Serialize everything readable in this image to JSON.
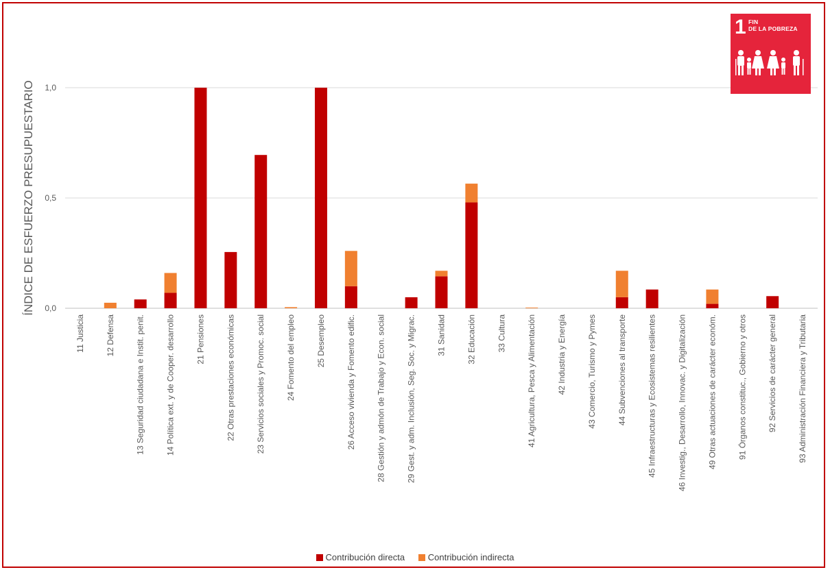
{
  "chart_data": {
    "type": "bar",
    "stacked": true,
    "ylabel": "ÍNDICE DE ESFUERZO PRESUPUESTARIO",
    "xlabel": "",
    "ylim": [
      0,
      1.15
    ],
    "yticks": [
      {
        "value": 0,
        "label": "0,0"
      },
      {
        "value": 0.5,
        "label": "0,5"
      },
      {
        "value": 1,
        "label": "1,0"
      }
    ],
    "grid": true,
    "legend_position": "bottom",
    "categories": [
      "11 Justicia",
      "12 Defensa",
      "13 Seguridad ciudadana e Instit. penit.",
      "14 Política ext. y de Cooper. desarrollo",
      "21 Pensiones",
      "22 Otras prestaciones económicas",
      "23 Servicios sociales y Promoc. social",
      "24 Fomento del empleo",
      "25 Desempleo",
      "26 Acceso vivienda y Fomento edific.",
      "28 Gestión y admón de Trabajo y Econ. social",
      "29 Gest. y adm. Inclusión, Seg. Soc. y Migrac.",
      "31 Sanidad",
      "32 Educación",
      "33 Cultura",
      "41 Agricultura, Pesca y Alimentación",
      "42 Industria y Energía",
      "43 Comercio, Turismo y Pymes",
      "44 Subvenciones al transporte",
      "45 Infraestructuras y Ecosistemas resilientes",
      "46 Investig., Desarrollo, Innovac. y Digitalización",
      "49 Otras actuaciones de carácter económ.",
      "91 Órganos constituc., Gobierno y otros",
      "92 Servicios de carácter general",
      "93 Administración Financiera y Tributaria"
    ],
    "series": [
      {
        "name": "Contribución directa",
        "color": "#c00000",
        "values": [
          0,
          0,
          0.04,
          0.07,
          1.0,
          0.255,
          0.695,
          0,
          1.0,
          0.1,
          0,
          0.05,
          0.145,
          0.48,
          0,
          0,
          0,
          0,
          0.05,
          0.085,
          0,
          0.02,
          0,
          0.055,
          0
        ]
      },
      {
        "name": "Contribución indirecta",
        "color": "#f08030",
        "values": [
          0,
          0.025,
          0,
          0.09,
          0,
          0,
          0,
          0.005,
          0,
          0.16,
          0,
          0,
          0.025,
          0.085,
          0,
          0.003,
          0,
          0,
          0.12,
          0,
          0,
          0.065,
          0,
          0,
          0
        ]
      }
    ]
  },
  "logo": {
    "number": "1",
    "text_line1": "FIN",
    "text_line2": "DE LA POBREZA",
    "bg_color": "#e5243b",
    "icon": "family-icon"
  }
}
